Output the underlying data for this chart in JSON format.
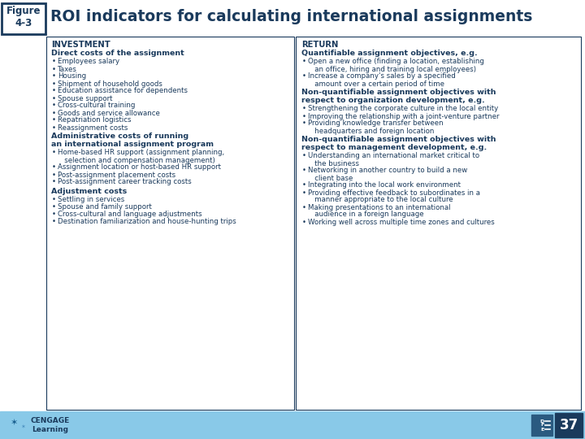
{
  "title": "ROI indicators for calculating international assignments",
  "figure_label": "Figure\n4-3",
  "bg_color": "#ffffff",
  "header_color": "#1a3a5c",
  "title_color": "#1a3a5c",
  "box_border_color": "#1a3a5c",
  "footer_bg": "#89c9e8",
  "footer_text": "37",
  "left_col_header": "INVESTMENT",
  "left_sections": [
    {
      "heading": "Direct costs of the assignment",
      "items": [
        "Employees salary",
        "Taxes",
        "Housing",
        "Shipment of household goods",
        "Education assistance for dependents",
        "Spouse support",
        "Cross-cultural training",
        "Goods and service allowance",
        "Repatriation logistics",
        "Reassignment costs"
      ]
    },
    {
      "heading": "Administrative costs of running\nan international assignment program",
      "items": [
        "Home-based HR support (assignment planning,\n   selection and compensation management)",
        "Assignment location or host-based HR support",
        "Post-assignment placement costs",
        "Post-assignment career tracking costs"
      ]
    },
    {
      "heading": "Adjustment costs",
      "items": [
        "Settling in services",
        "Spouse and family support",
        "Cross-cultural and language adjustments",
        "Destination familiarization and house-hunting trips"
      ]
    }
  ],
  "right_col_header": "RETURN",
  "right_sections": [
    {
      "heading": "Quantifiable assignment objectives, e.g.",
      "items": [
        "Open a new office (finding a location, establishing\n   an office, hiring and training local employees)",
        "Increase a company's sales by a specified\n   amount over a certain period of time"
      ]
    },
    {
      "heading": "Non-quantifiable assignment objectives with\nrespect to organization development, e.g.",
      "items": [
        "Strengthening the corporate culture in the local entity",
        "Improving the relationship with a joint-venture partner",
        "Providing knowledge transfer between\n   headquarters and foreign location"
      ]
    },
    {
      "heading": "Non-quantifiable assignment objectives with\nrespect to management development, e.g.",
      "items": [
        "Understanding an international market critical to\n   the business",
        "Networking in another country to build a new\n   client base",
        "Integrating into the local work environment",
        "Providing effective feedback to subordinates in a\n   manner appropriate to the local culture",
        "Making presentations to an international\n   audience in a foreign language",
        "Working well across multiple time zones and cultures"
      ]
    }
  ]
}
